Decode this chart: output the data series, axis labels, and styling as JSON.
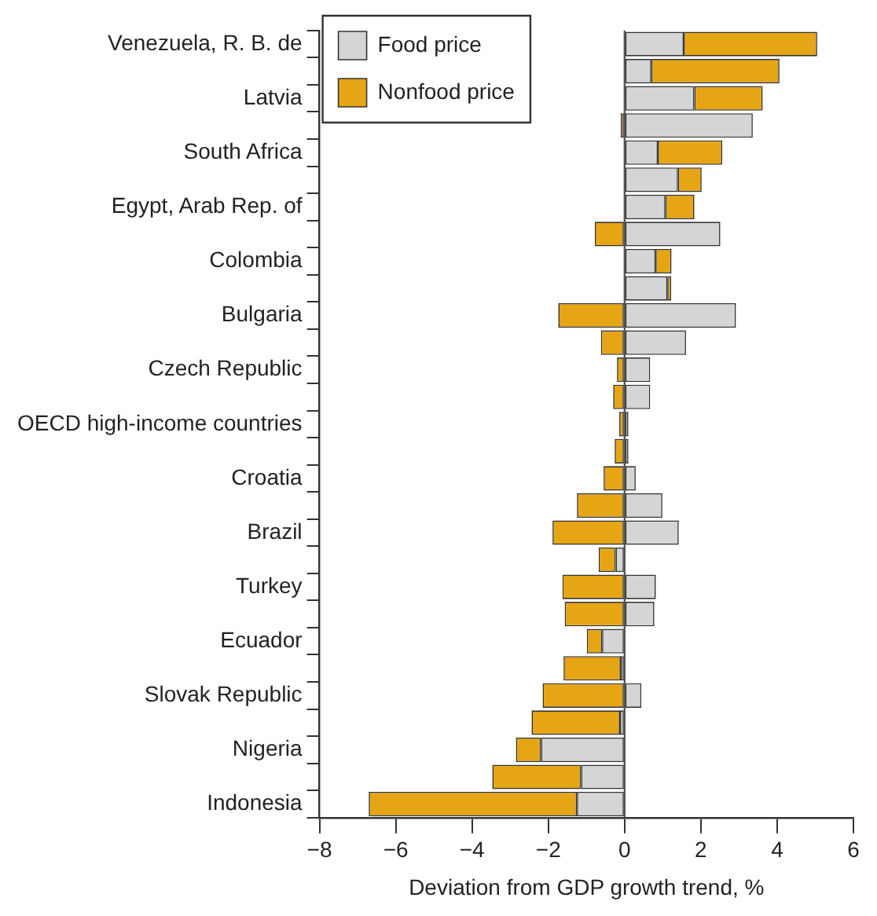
{
  "chart_data": {
    "type": "bar",
    "orientation": "horizontal",
    "stacked": true,
    "xlabel": "Deviation from GDP growth trend, %",
    "categories": [
      "Venezuela, R. B. de",
      null,
      "Latvia",
      null,
      "South Africa",
      null,
      "Egypt, Arab Rep. of",
      null,
      "Colombia",
      null,
      "Bulgaria",
      null,
      "Czech Republic",
      null,
      "OECD high-income countries",
      null,
      "Croatia",
      null,
      "Brazil",
      null,
      "Turkey",
      null,
      "Ecuador",
      null,
      "Slovak Republic",
      null,
      "Nigeria",
      null,
      "Indonesia"
    ],
    "series": [
      {
        "name": "Food price",
        "color": "#d4d5d7",
        "values": [
          1.55,
          0.7,
          1.83,
          3.36,
          0.87,
          1.4,
          1.07,
          2.51,
          0.81,
          1.12,
          2.92,
          1.61,
          0.67,
          0.67,
          0.1,
          0.1,
          0.29,
          0.99,
          1.42,
          -0.23,
          0.82,
          0.78,
          -0.59,
          -0.1,
          0.44,
          -0.12,
          -2.19,
          -1.14,
          -1.25
        ]
      },
      {
        "name": "Nonfood price",
        "color": "#e6a514",
        "values": [
          3.5,
          3.36,
          1.79,
          -0.1,
          1.69,
          0.62,
          0.76,
          -0.78,
          0.42,
          0.1,
          -1.74,
          -0.62,
          -0.2,
          -0.3,
          -0.14,
          -0.26,
          -0.55,
          -1.25,
          -1.89,
          -0.45,
          -1.63,
          -1.57,
          -0.4,
          -1.5,
          -2.15,
          -2.32,
          -0.66,
          -2.33,
          -5.46
        ]
      }
    ],
    "xlim": [
      -8,
      6
    ],
    "xticks": [
      {
        "value": -8,
        "label": "−8"
      },
      {
        "value": -6,
        "label": "−6"
      },
      {
        "value": -4,
        "label": "−4"
      },
      {
        "value": -2,
        "label": "−2"
      },
      0,
      2,
      4,
      6
    ],
    "ref_lines": [
      {
        "axis": "x",
        "value": 0,
        "color": "#555555"
      }
    ],
    "grid": false,
    "legend": "top left"
  }
}
